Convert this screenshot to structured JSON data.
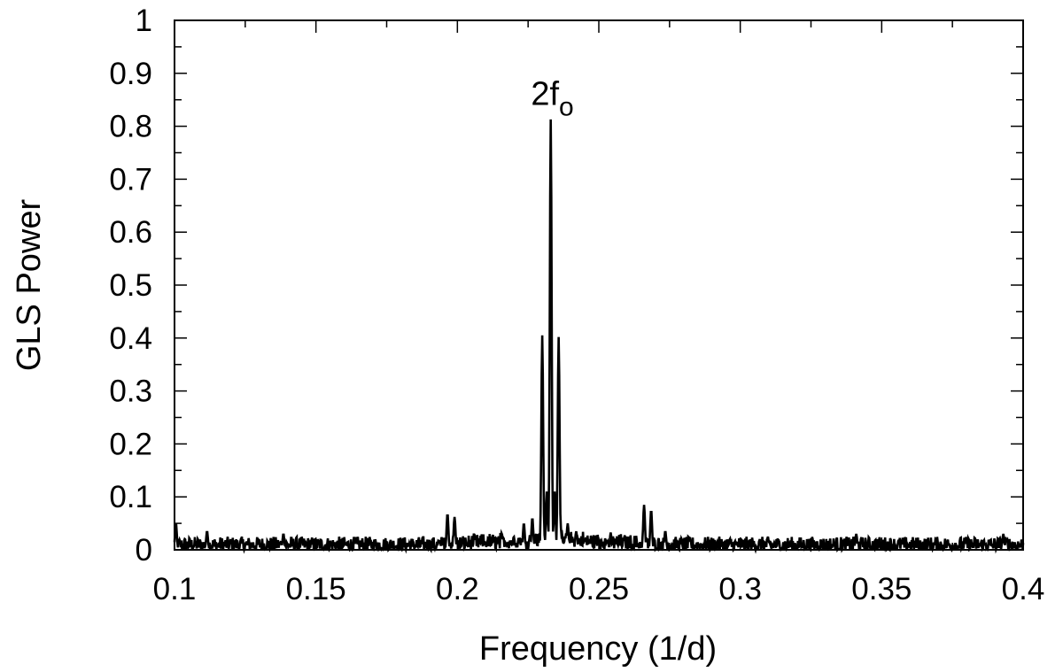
{
  "chart_data": {
    "type": "line",
    "title": "",
    "xlabel": "Frequency (1/d)",
    "ylabel": "GLS Power",
    "xlim": [
      0.1,
      0.4
    ],
    "ylim": [
      0,
      1
    ],
    "x_ticks": [
      "0.1",
      "0.15",
      "0.2",
      "0.25",
      "0.3",
      "0.35",
      "0.4"
    ],
    "y_ticks": [
      "0",
      "0.1",
      "0.2",
      "0.3",
      "0.4",
      "0.5",
      "0.6",
      "0.7",
      "0.8",
      "0.9",
      "1"
    ],
    "grid": false,
    "line_color": "#000000",
    "annotation": {
      "text": "2f",
      "subscript": "o",
      "x": 0.232,
      "y": 0.86
    },
    "noise_floor": 0.025,
    "peaks": [
      {
        "x": 0.1005,
        "y": 0.05
      },
      {
        "x": 0.1115,
        "y": 0.035
      },
      {
        "x": 0.1385,
        "y": 0.03
      },
      {
        "x": 0.1965,
        "y": 0.068
      },
      {
        "x": 0.199,
        "y": 0.062
      },
      {
        "x": 0.2235,
        "y": 0.05
      },
      {
        "x": 0.2265,
        "y": 0.06
      },
      {
        "x": 0.23,
        "y": 0.405
      },
      {
        "x": 0.2316,
        "y": 0.11
      },
      {
        "x": 0.233,
        "y": 0.813
      },
      {
        "x": 0.2344,
        "y": 0.11
      },
      {
        "x": 0.2358,
        "y": 0.402
      },
      {
        "x": 0.239,
        "y": 0.05
      },
      {
        "x": 0.242,
        "y": 0.035
      },
      {
        "x": 0.266,
        "y": 0.085
      },
      {
        "x": 0.2685,
        "y": 0.075
      },
      {
        "x": 0.2735,
        "y": 0.035
      },
      {
        "x": 0.341,
        "y": 0.03
      },
      {
        "x": 0.393,
        "y": 0.03
      }
    ]
  }
}
